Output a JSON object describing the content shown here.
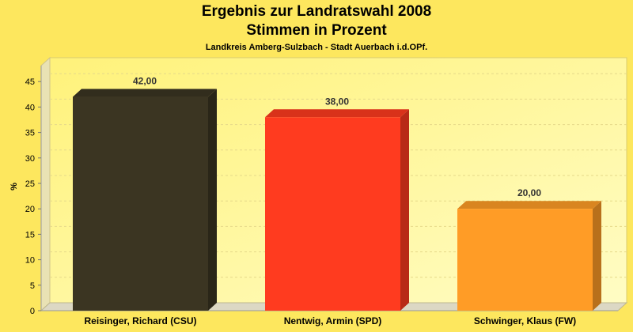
{
  "chart_data": {
    "type": "bar",
    "title_line1": "Ergebnis zur Landratswahl 2008",
    "title_line2": "Stimmen in Prozent",
    "subtitle": "Landkreis Amberg-Sulzbach - Stadt Auerbach i.d.OPf.",
    "ylabel": "%",
    "xlabel": "",
    "ylim": [
      0,
      47
    ],
    "yticks": [
      0,
      5,
      10,
      15,
      20,
      25,
      30,
      35,
      40,
      45
    ],
    "categories": [
      "Reisinger, Richard (CSU)",
      "Nentwig, Armin (SPD)",
      "Schwinger, Klaus (FW)"
    ],
    "values": [
      42,
      38,
      20
    ],
    "value_labels": [
      "42,00",
      "38,00",
      "20,00"
    ],
    "colors": [
      "#3b3522",
      "#ff3b1f",
      "#ff9c26"
    ],
    "grid": true,
    "legend": "none"
  },
  "colors": {
    "background": "#fde75e",
    "plot_background": "#fff9a3"
  }
}
